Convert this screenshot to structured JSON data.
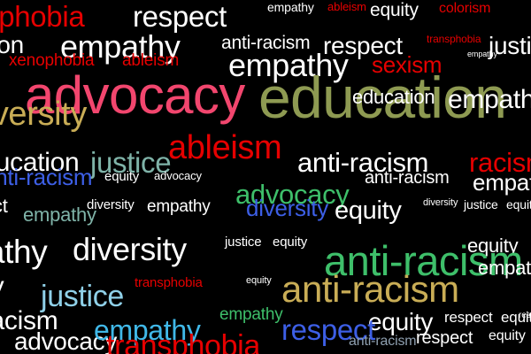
{
  "palette": {
    "white": "#ffffff",
    "red": "#e60000",
    "pink": "#f2466e",
    "olive": "#8e9a52",
    "gold": "#c9ad56",
    "teal": "#7fb3a8",
    "green": "#3ebf6a",
    "blue": "#3d5fe6",
    "lightblue": "#8fd0e8",
    "sky": "#40b8e8",
    "bluegray": "#8fa0b0"
  },
  "words": [
    {
      "text": "xenophobia",
      "color": "red"
    },
    {
      "text": "respect",
      "color": "white"
    },
    {
      "text": "empathy",
      "color": "white"
    },
    {
      "text": "ableism",
      "color": "red"
    },
    {
      "text": "equity",
      "color": "white"
    },
    {
      "text": "colorism",
      "color": "red"
    },
    {
      "text": "education",
      "color": "white"
    },
    {
      "text": "empathy",
      "color": "white"
    },
    {
      "text": "anti-racism",
      "color": "white"
    },
    {
      "text": "respect",
      "color": "white"
    },
    {
      "text": "transphobia",
      "color": "red"
    },
    {
      "text": "justice",
      "color": "white"
    },
    {
      "text": "xenophobia",
      "color": "red"
    },
    {
      "text": "ableism",
      "color": "red"
    },
    {
      "text": "empathy",
      "color": "white"
    },
    {
      "text": "sexism",
      "color": "red"
    },
    {
      "text": "empathy",
      "color": "white"
    },
    {
      "text": "advocacy",
      "color": "pink"
    },
    {
      "text": "education",
      "color": "olive"
    },
    {
      "text": "education",
      "color": "white"
    },
    {
      "text": "empathy",
      "color": "white"
    },
    {
      "text": "diversity",
      "color": "gold"
    },
    {
      "text": "ableism",
      "color": "red"
    },
    {
      "text": "education",
      "color": "white"
    },
    {
      "text": "justice",
      "color": "teal"
    },
    {
      "text": "anti-racism",
      "color": "white"
    },
    {
      "text": "racism",
      "color": "red"
    },
    {
      "text": "anti-racism",
      "color": "blue"
    },
    {
      "text": "equity",
      "color": "white"
    },
    {
      "text": "advocacy",
      "color": "white"
    },
    {
      "text": "anti-racism",
      "color": "white"
    },
    {
      "text": "empathy",
      "color": "white"
    },
    {
      "text": "advocacy",
      "color": "green"
    },
    {
      "text": "respect",
      "color": "white"
    },
    {
      "text": "diversity",
      "color": "white"
    },
    {
      "text": "empathy",
      "color": "white"
    },
    {
      "text": "diversity",
      "color": "blue"
    },
    {
      "text": "equity",
      "color": "white"
    },
    {
      "text": "diversity",
      "color": "white"
    },
    {
      "text": "justice",
      "color": "white"
    },
    {
      "text": "equity",
      "color": "white"
    },
    {
      "text": "empathy",
      "color": "teal"
    },
    {
      "text": "empathy",
      "color": "white"
    },
    {
      "text": "diversity",
      "color": "white"
    },
    {
      "text": "justice",
      "color": "white"
    },
    {
      "text": "equity",
      "color": "white"
    },
    {
      "text": "equity",
      "color": "white"
    },
    {
      "text": "anti-racism",
      "color": "green"
    },
    {
      "text": "empathy",
      "color": "white"
    },
    {
      "text": "advocacy",
      "color": "white"
    },
    {
      "text": "justice",
      "color": "lightblue"
    },
    {
      "text": "transphobia",
      "color": "red"
    },
    {
      "text": "equity",
      "color": "white"
    },
    {
      "text": "anti-racism",
      "color": "gold"
    },
    {
      "text": "anti-racism",
      "color": "white"
    },
    {
      "text": "empathy",
      "color": "green"
    },
    {
      "text": "equity",
      "color": "white"
    },
    {
      "text": "respect",
      "color": "white"
    },
    {
      "text": "equity",
      "color": "white"
    },
    {
      "text": "respect",
      "color": "white"
    },
    {
      "text": "advocacy",
      "color": "white"
    },
    {
      "text": "empathy",
      "color": "sky"
    },
    {
      "text": "transphobia",
      "color": "red"
    },
    {
      "text": "respect",
      "color": "blue"
    },
    {
      "text": "anti-racism",
      "color": "bluegray"
    },
    {
      "text": "respect",
      "color": "white"
    },
    {
      "text": "equity",
      "color": "white"
    }
  ]
}
